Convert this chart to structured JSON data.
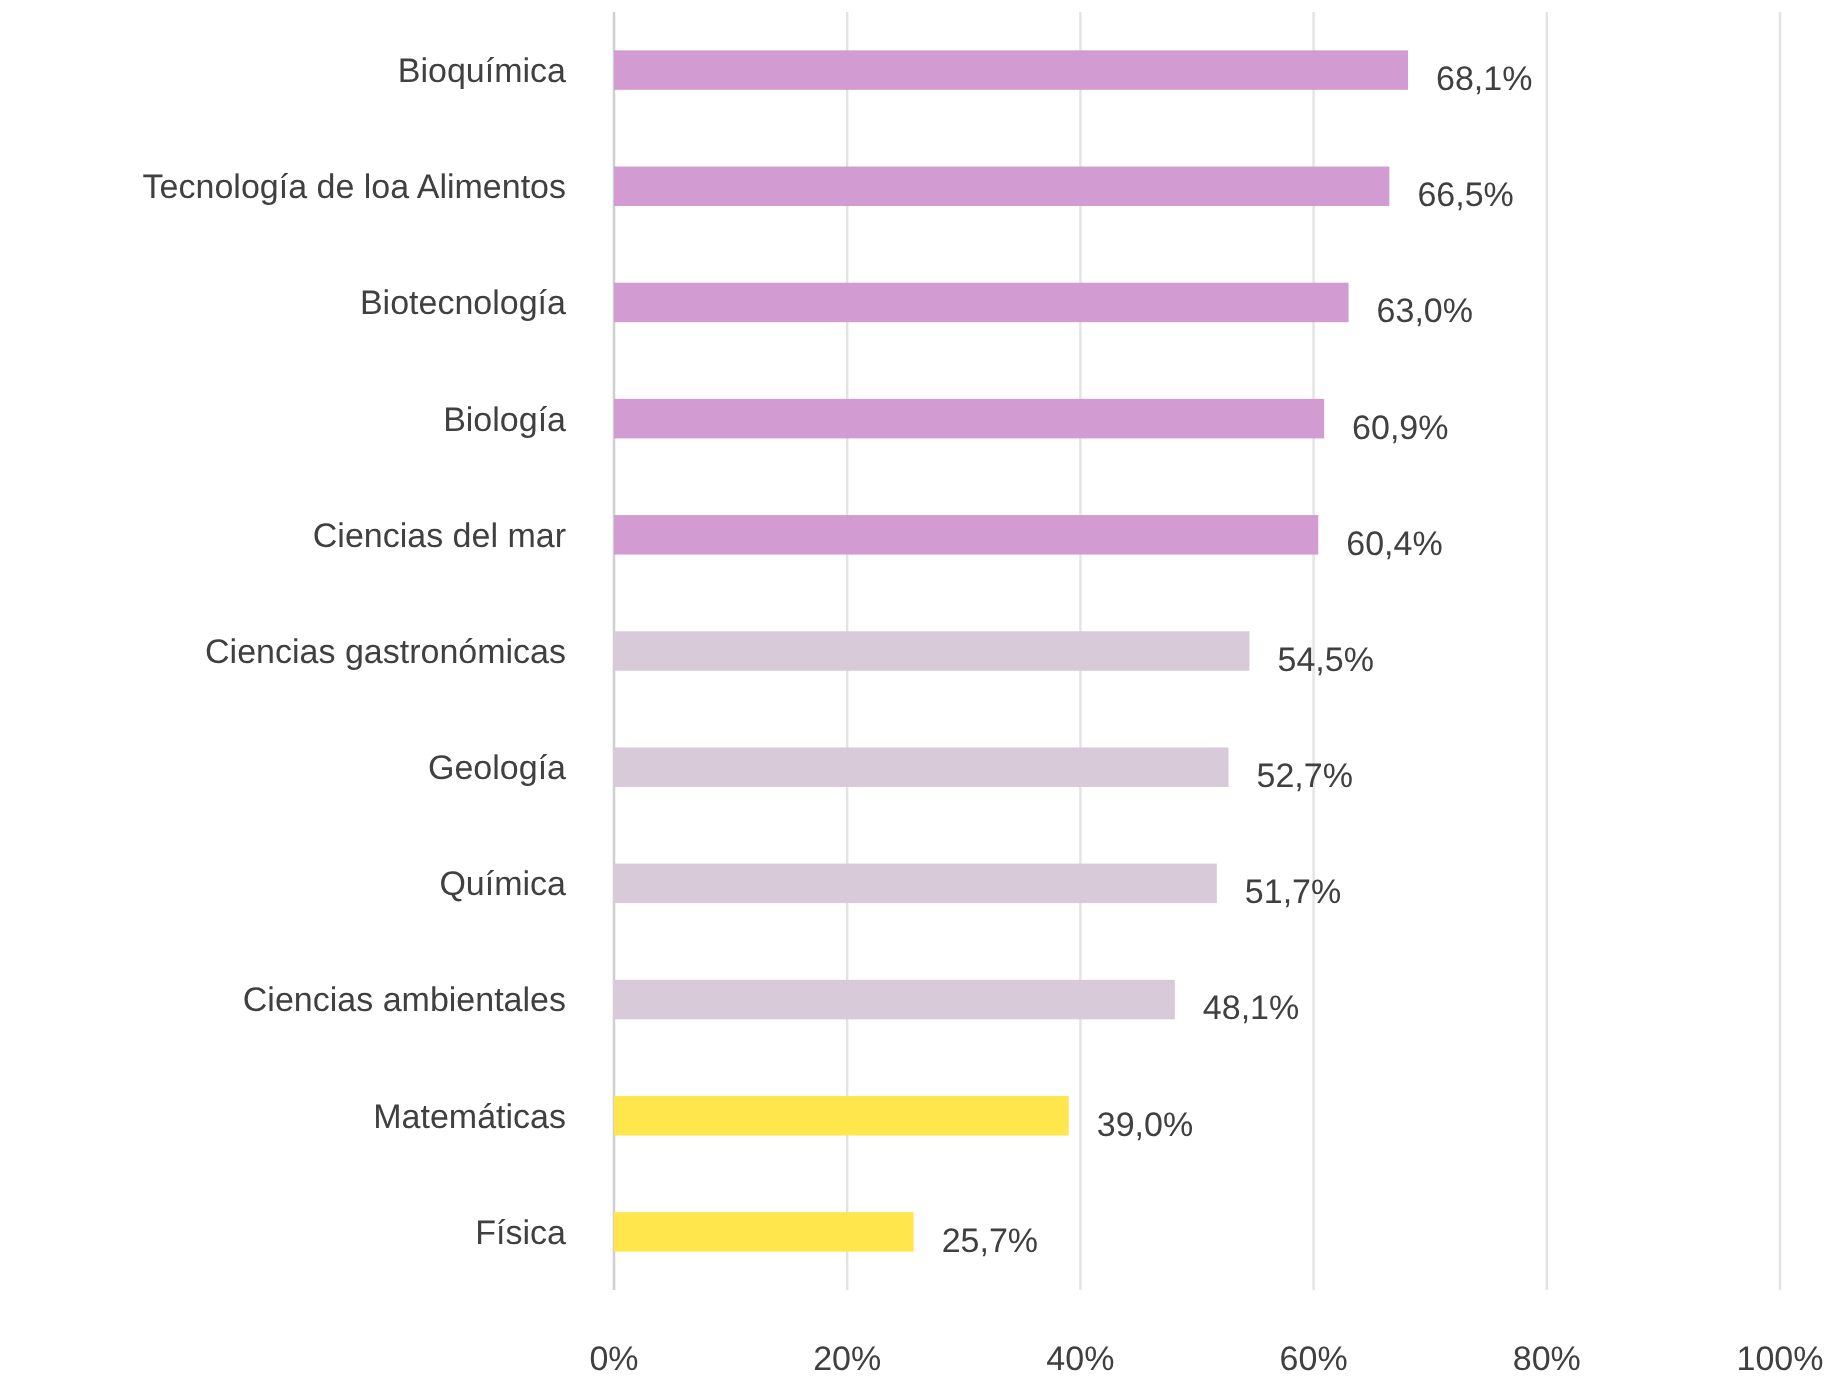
{
  "chart_data": {
    "type": "bar",
    "orientation": "horizontal",
    "categories": [
      "Bioquímica",
      "Tecnología de loa Alimentos",
      "Biotecnología",
      "Biología",
      "Ciencias del mar",
      "Ciencias gastronómicas",
      "Geología",
      "Química",
      "Ciencias ambientales",
      "Matemáticas",
      "Física"
    ],
    "values": [
      68.1,
      66.5,
      63.0,
      60.9,
      60.4,
      54.5,
      52.7,
      51.7,
      48.1,
      39.0,
      25.7
    ],
    "colors": [
      "#d29bd2",
      "#d29bd2",
      "#d29bd2",
      "#d29bd2",
      "#d29bd2",
      "#d8cad9",
      "#d8cad9",
      "#d8cad9",
      "#d8cad9",
      "#ffe64d",
      "#ffe64d"
    ],
    "value_labels": [
      "68,1%",
      "66,5%",
      "63,0%",
      "60,9%",
      "60,4%",
      "54,5%",
      "52,7%",
      "51,7%",
      "48,1%",
      "39,0%",
      "25,7%"
    ],
    "xlim": [
      0,
      100
    ],
    "xticks": [
      {
        "value": 0,
        "label": "0%"
      },
      {
        "value": 20,
        "label": "20%"
      },
      {
        "value": 40,
        "label": "40%"
      },
      {
        "value": 60,
        "label": "60%"
      },
      {
        "value": 80,
        "label": "80%"
      },
      {
        "value": 100,
        "label": "100%"
      }
    ],
    "grid": "x"
  }
}
